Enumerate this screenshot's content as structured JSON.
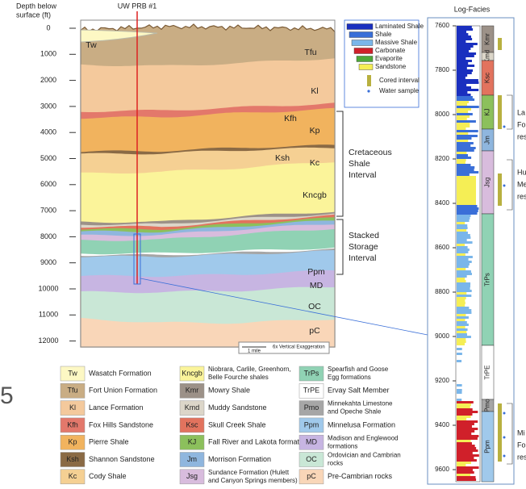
{
  "cross_section": {
    "y_axis_label": [
      "Depth below",
      "surface (ft)"
    ],
    "well": "UW PRB #1",
    "depth_ticks": [
      "0",
      "1000",
      "2000",
      "3000",
      "4000",
      "5000",
      "6000",
      "7000",
      "8000",
      "9000",
      "10000",
      "11000",
      "12000"
    ],
    "formation_labels": [
      "Tw",
      "Tfu",
      "Kl",
      "Kfh",
      "Kp",
      "Ksh",
      "Kc",
      "Kncgb",
      "Ppm",
      "MD",
      "OC",
      "pC"
    ],
    "brackets": [
      [
        "Cretaceous",
        "Shale",
        "Interval"
      ],
      [
        "Stacked",
        "Storage",
        "Interval"
      ]
    ],
    "scale_bar": "1 mile",
    "exaggeration": "6x Vertical Exaggeration"
  },
  "lithology_legend": [
    "Laminated Shale",
    "Shale",
    "Massive Shale",
    "Carbonate",
    "Evaporite",
    "Sandstone",
    "Cored interval",
    "Water sample"
  ],
  "log": {
    "title": "Log-Facies",
    "depth_ticks": [
      "7600",
      "7800",
      "8000",
      "8200",
      "8400",
      "8600",
      "8800",
      "9000",
      "9200",
      "9400",
      "9600"
    ],
    "formations": [
      "Kmr",
      "Kmd",
      "Ksc",
      "KJ",
      "Jm",
      "Jsg",
      "TrPs",
      "TrPE",
      "Pmo",
      "Ppm"
    ],
    "notes": [
      [
        "La",
        "Fo",
        "res"
      ],
      [
        "Hu",
        "Me",
        "res"
      ],
      [
        "Mi",
        "Fo",
        "res"
      ]
    ]
  },
  "formation_legend": [
    {
      "code": "Tw",
      "name": [
        "Wasatch Formation"
      ],
      "color": "#fdf8c4"
    },
    {
      "code": "Tfu",
      "name": [
        "Fort Union Formation"
      ],
      "color": "#c9ad84"
    },
    {
      "code": "Kl",
      "name": [
        "Lance Formation"
      ],
      "color": "#f4c99c"
    },
    {
      "code": "Kfh",
      "name": [
        "Fox Hills Sandstone"
      ],
      "color": "#e3786b"
    },
    {
      "code": "Kp",
      "name": [
        "Pierre Shale"
      ],
      "color": "#f1b35e"
    },
    {
      "code": "Ksh",
      "name": [
        "Shannon Sandstone"
      ],
      "color": "#8a6a45"
    },
    {
      "code": "Kc",
      "name": [
        "Cody Shale"
      ],
      "color": "#f5d093"
    },
    {
      "code": "Kncgb",
      "name": [
        "Niobrara, Carlile, Greenhorn,",
        "Belle Fourche shales"
      ],
      "color": "#fbf49a"
    },
    {
      "code": "Kmr",
      "name": [
        "Mowry Shale"
      ],
      "color": "#9c9188"
    },
    {
      "code": "Kmd",
      "name": [
        "Muddy Sandstone"
      ],
      "color": "#dcd6c9"
    },
    {
      "code": "Ksc",
      "name": [
        "Skull Creek Shale"
      ],
      "color": "#e2735e"
    },
    {
      "code": "KJ",
      "name": [
        "Fall River and Lakota formations"
      ],
      "color": "#8cc05c"
    },
    {
      "code": "Jm",
      "name": [
        "Morrison Formation"
      ],
      "color": "#8fb6de"
    },
    {
      "code": "Jsg",
      "name": [
        "Sundance Formation (Hulett",
        "and Canyon Springs members)"
      ],
      "color": "#d8bcdd"
    },
    {
      "code": "TrPs",
      "name": [
        "Spearfish and Goose",
        "Egg formations"
      ],
      "color": "#90d2b4"
    },
    {
      "code": "TrPE",
      "name": [
        "Ervay Salt Member"
      ],
      "color": "#ffffff"
    },
    {
      "code": "Pmo",
      "name": [
        "Minnekahta Limestone",
        "and Opeche Shale"
      ],
      "color": "#a6a6a6"
    },
    {
      "code": "Ppm",
      "name": [
        "Minnelusa Formation"
      ],
      "color": "#a0c9eb"
    },
    {
      "code": "MD",
      "name": [
        "Madison and Englewood",
        "formations"
      ],
      "color": "#c7b5e2"
    },
    {
      "code": "OC",
      "name": [
        "Ordovician and Cambrian",
        "rocks"
      ],
      "color": "#c9e7d6"
    },
    {
      "code": "pC",
      "name": [
        "Pre-Cambrian rocks"
      ],
      "color": "#f9d6b8"
    }
  ],
  "edge_text": "5"
}
